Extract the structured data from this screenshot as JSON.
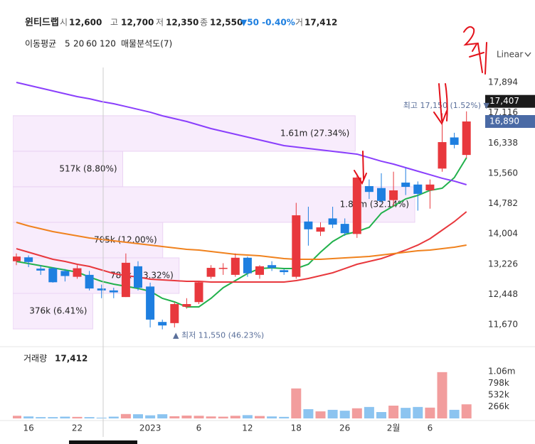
{
  "header": {
    "name": "윈티드랩",
    "quotes": [
      {
        "label": "시",
        "value": "12,600"
      },
      {
        "label": "고",
        "value": "12,700"
      },
      {
        "label": "저",
        "value": "12,350"
      },
      {
        "label": "종",
        "value": "12,550"
      }
    ],
    "change": "▼50 -0.40%",
    "volume_label": "거",
    "volume": "17,412",
    "indicators_label": "이동평균",
    "analysis_label": "매물분석도(7)",
    "scale_mode": "Linear"
  },
  "chart_data": {
    "type": "candlestick",
    "categories": [
      null,
      "16",
      null,
      null,
      null,
      "22",
      null,
      null,
      null,
      null,
      null,
      "2023",
      null,
      null,
      null,
      "6",
      null,
      null,
      null,
      "12",
      null,
      null,
      null,
      "18",
      null,
      null,
      null,
      "26",
      null,
      null,
      null,
      "2월",
      null,
      null,
      "6",
      null,
      null,
      null
    ],
    "ylim": [
      11251,
      18277
    ],
    "yticks": [
      {
        "value": 17894,
        "label": "17,894"
      },
      {
        "value": 17116,
        "label": "17,116"
      },
      {
        "value": 16338,
        "label": "16,338"
      },
      {
        "value": 15560,
        "label": "15,560"
      },
      {
        "value": 14782,
        "label": "14,782"
      },
      {
        "value": 14004,
        "label": "14,004"
      },
      {
        "value": 13226,
        "label": "13,226"
      },
      {
        "value": 12448,
        "label": "12,448"
      },
      {
        "value": 11670,
        "label": "11,670"
      }
    ],
    "grid": false,
    "candles": {
      "up_color": "#e8383d",
      "down_color": "#1e7fe0",
      "open": [
        13300,
        13400,
        13110,
        13120,
        13050,
        12900,
        12950,
        12600,
        12550,
        12380,
        13170,
        12650,
        11740,
        11710,
        12130,
        12250,
        12900,
        13120,
        12950,
        13390,
        12950,
        13200,
        13070,
        12900,
        14320,
        14060,
        14400,
        14260,
        14000,
        15230,
        15180,
        14870,
        15320,
        15270,
        15120,
        15680,
        16480,
        16030
      ],
      "high": [
        13500,
        13450,
        13200,
        13150,
        13100,
        13200,
        13050,
        12700,
        12620,
        13500,
        13300,
        12750,
        11800,
        12250,
        12350,
        12800,
        13200,
        13250,
        13500,
        13420,
        13200,
        13300,
        13100,
        14800,
        14700,
        14300,
        14700,
        14400,
        15550,
        15400,
        15560,
        15600,
        15700,
        15350,
        15400,
        17100,
        16600,
        17150
      ],
      "low": [
        13200,
        13150,
        12950,
        12750,
        12780,
        12850,
        12550,
        12350,
        12350,
        12380,
        12550,
        11600,
        11550,
        11600,
        12080,
        12200,
        12850,
        12950,
        12900,
        12900,
        12850,
        13050,
        12950,
        12850,
        13700,
        13950,
        14150,
        13950,
        13900,
        14900,
        14800,
        14700,
        15000,
        14600,
        14650,
        15600,
        16200,
        15950
      ],
      "close": [
        13420,
        13280,
        13060,
        12760,
        12920,
        13120,
        12600,
        12550,
        12500,
        13260,
        12620,
        11800,
        11650,
        12200,
        12200,
        12760,
        13130,
        13130,
        13390,
        12990,
        13170,
        13130,
        13020,
        14480,
        14120,
        14170,
        14240,
        14020,
        15450,
        15080,
        14850,
        15120,
        15210,
        15030,
        15270,
        16360,
        16290,
        16890
      ]
    },
    "moving_averages": [
      {
        "name": "5",
        "color": "#22b14c",
        "values": [
          13295,
          13240,
          13186,
          13131,
          13076,
          13021,
          12894,
          12784,
          12711,
          12656,
          12602,
          12529,
          12346,
          12255,
          12127,
          12127,
          12346,
          12620,
          12802,
          12985,
          13112,
          13131,
          13112,
          13112,
          13222,
          13532,
          13806,
          13988,
          14061,
          14171,
          14536,
          14718,
          14901,
          14992,
          15120,
          15175,
          15448,
          15959
        ]
      },
      {
        "name": "20",
        "color": "#e8383d",
        "values": [
          13623,
          13532,
          13441,
          13350,
          13295,
          13222,
          13167,
          13076,
          12985,
          12930,
          12894,
          12839,
          12820,
          12802,
          12784,
          12784,
          12766,
          12766,
          12766,
          12766,
          12766,
          12766,
          12766,
          12802,
          12857,
          12930,
          13003,
          13112,
          13222,
          13295,
          13368,
          13477,
          13587,
          13715,
          13879,
          14098,
          14317,
          14572
        ]
      },
      {
        "name": "60",
        "color": "#f0821e",
        "values": [
          14299,
          14207,
          14134,
          14061,
          14007,
          13952,
          13897,
          13861,
          13824,
          13788,
          13751,
          13715,
          13678,
          13642,
          13605,
          13587,
          13550,
          13514,
          13477,
          13459,
          13441,
          13404,
          13368,
          13350,
          13350,
          13350,
          13368,
          13386,
          13404,
          13423,
          13459,
          13496,
          13532,
          13569,
          13587,
          13623,
          13660,
          13715
        ]
      },
      {
        "name": "120",
        "color": "#8a3ffc",
        "values": [
          17894,
          17821,
          17748,
          17675,
          17602,
          17529,
          17474,
          17401,
          17346,
          17274,
          17201,
          17128,
          17036,
          16963,
          16890,
          16799,
          16708,
          16635,
          16562,
          16489,
          16416,
          16343,
          16270,
          16233,
          16197,
          16160,
          16124,
          16087,
          16051,
          15960,
          15869,
          15795,
          15704,
          15613,
          15522,
          15431,
          15358,
          15266
        ]
      }
    ],
    "price_badges": [
      {
        "value": 17407,
        "label": "17,407",
        "color": "#1b1b1b"
      },
      {
        "value": 16890,
        "label": "16,890",
        "color": "#4a6aa5"
      }
    ],
    "annotations": [
      {
        "text": "최고 17,150 (1.52%) ▼",
        "value": 17150
      },
      {
        "text": "▲ 최저 11,550 (46.23%)",
        "value": 11550
      }
    ],
    "volume_profile": {
      "range": [
        11561,
        17038
      ],
      "rows": [
        {
          "value": 1610000,
          "label": "1.61m (27.34%)"
        },
        {
          "value": 517000,
          "label": "517k (8.80%)"
        },
        {
          "value": 1890000,
          "label": "1.89m (32.14%)"
        },
        {
          "value": 705000,
          "label": "705k (12.00%)"
        },
        {
          "value": 782000,
          "label": "782k (13.32%)"
        },
        {
          "value": 376000,
          "label": "376k (6.41%)"
        }
      ]
    },
    "volume": {
      "title": "거래량",
      "up_color": "#f29d9d",
      "down_color": "#8cc4f0",
      "ylim": [
        0,
        1515000
      ],
      "yticks": [
        {
          "value": 1064000,
          "label": "1.06m"
        },
        {
          "value": 798000,
          "label": "798k"
        },
        {
          "value": 532000,
          "label": "532k"
        },
        {
          "value": 266000,
          "label": "266k"
        }
      ],
      "values": [
        60000,
        45000,
        30000,
        30000,
        40000,
        35000,
        30000,
        17412,
        40000,
        100000,
        95000,
        70000,
        95000,
        50000,
        65000,
        60000,
        45000,
        40000,
        60000,
        75000,
        55000,
        45000,
        35000,
        680000,
        210000,
        160000,
        195000,
        175000,
        230000,
        260000,
        145000,
        290000,
        240000,
        260000,
        245000,
        1050000,
        195000,
        320000
      ]
    }
  }
}
